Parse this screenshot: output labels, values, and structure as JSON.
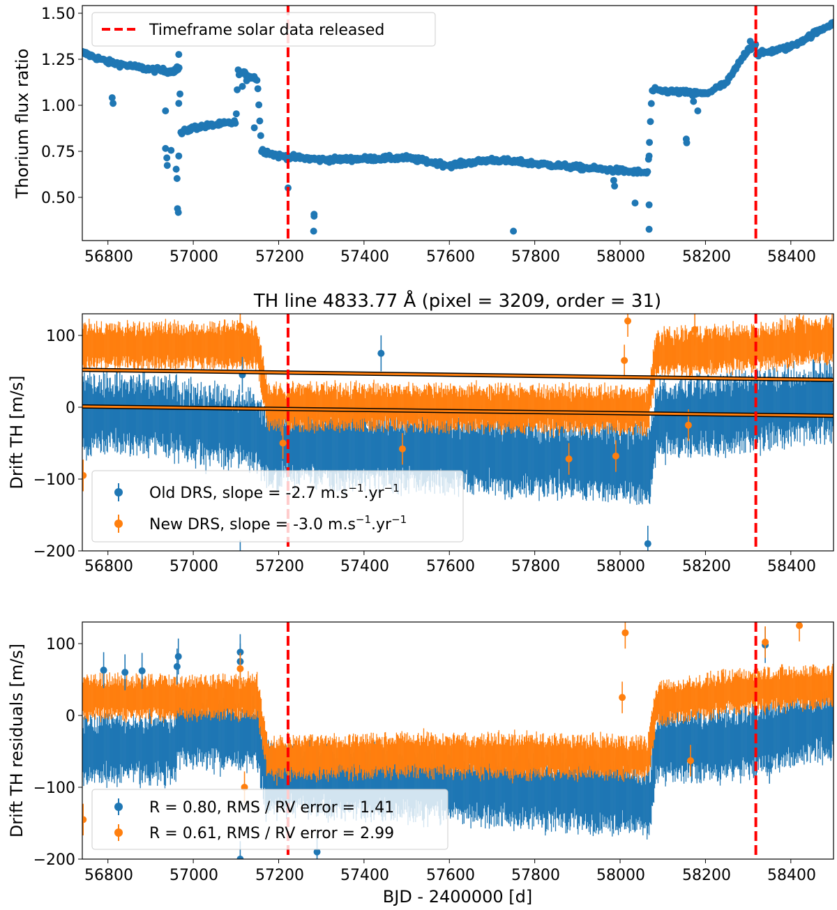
{
  "figure": {
    "xlabel": "BJD - 2400000 [d]",
    "colors": {
      "old": "#1f77b4",
      "new": "#ff7f0e",
      "marker": "#ff0000",
      "fit": "#000000"
    }
  },
  "chart_data": [
    {
      "id": "flux",
      "type": "scatter",
      "title": "",
      "xlabel": "",
      "ylabel": "Thorium flux ratio",
      "xlim": [
        56740,
        58500
      ],
      "ylim": [
        0.28,
        1.53
      ],
      "xticks": [
        56800,
        57000,
        57200,
        57400,
        57600,
        57800,
        58000,
        58200,
        58400
      ],
      "xtick_labels": [
        "56800",
        "57000",
        "57200",
        "57400",
        "57600",
        "57800",
        "58000",
        "58200",
        "58400"
      ],
      "yticks": [
        0.5,
        0.75,
        1.0,
        1.25,
        1.5
      ],
      "ytick_labels": [
        "0.50",
        "0.75",
        "1.00",
        "1.25",
        "1.50"
      ],
      "legend": [
        "Timeframe solar data released"
      ],
      "vlines": [
        57222,
        58318
      ],
      "trend": [
        [
          56740,
          1.28
        ],
        [
          56800,
          1.23
        ],
        [
          56900,
          1.19
        ],
        [
          56950,
          1.18
        ],
        [
          56968,
          1.2
        ],
        [
          56970,
          0.85
        ],
        [
          57000,
          0.88
        ],
        [
          57100,
          0.91
        ],
        [
          57105,
          1.18
        ],
        [
          57150,
          1.14
        ],
        [
          57160,
          0.76
        ],
        [
          57200,
          0.73
        ],
        [
          57300,
          0.71
        ],
        [
          57500,
          0.72
        ],
        [
          57600,
          0.68
        ],
        [
          57700,
          0.71
        ],
        [
          57800,
          0.69
        ],
        [
          57900,
          0.67
        ],
        [
          58065,
          0.64
        ],
        [
          58075,
          1.08
        ],
        [
          58200,
          1.06
        ],
        [
          58250,
          1.12
        ],
        [
          58300,
          1.3
        ],
        [
          58318,
          1.32
        ],
        [
          58320,
          1.27
        ],
        [
          58400,
          1.31
        ],
        [
          58500,
          1.44
        ]
      ],
      "outliers": [
        [
          56810,
          1.04
        ],
        [
          56812,
          1.01
        ],
        [
          56935,
          0.97
        ],
        [
          56935,
          0.77
        ],
        [
          56938,
          0.72
        ],
        [
          56939,
          0.68
        ],
        [
          56948,
          0.76
        ],
        [
          56960,
          0.66
        ],
        [
          56962,
          0.61
        ],
        [
          56963,
          0.45
        ],
        [
          56965,
          0.43
        ],
        [
          56966,
          0.73
        ],
        [
          56966,
          1.01
        ],
        [
          56966,
          1.27
        ],
        [
          57115,
          1.1
        ],
        [
          57125,
          1.13
        ],
        [
          57143,
          0.88
        ],
        [
          57222,
          0.56
        ],
        [
          57283,
          0.42
        ],
        [
          57283,
          0.41
        ],
        [
          57282,
          0.33
        ],
        [
          57750,
          0.33
        ],
        [
          57985,
          0.6
        ],
        [
          57987,
          0.57
        ],
        [
          58035,
          0.48
        ],
        [
          58068,
          0.47
        ],
        [
          58068,
          0.34
        ],
        [
          58068,
          0.73
        ],
        [
          58155,
          0.82
        ],
        [
          58156,
          0.8
        ],
        [
          58170,
          1.05
        ],
        [
          58172,
          1.02
        ],
        [
          58182,
          0.97
        ],
        [
          58305,
          1.34
        ]
      ]
    },
    {
      "id": "drift",
      "type": "scatter",
      "title": "TH line 4833.77 Å (pixel = 3209, order = 31)",
      "xlabel": "",
      "ylabel": "Drift TH [m/s]",
      "xlim": [
        56740,
        58500
      ],
      "ylim": [
        -200,
        130
      ],
      "xticks": [
        56800,
        57000,
        57200,
        57400,
        57600,
        57800,
        58000,
        58200,
        58400
      ],
      "xtick_labels": [
        "56800",
        "57000",
        "57200",
        "57400",
        "57600",
        "57800",
        "58000",
        "58200",
        "58400"
      ],
      "yticks": [
        -200,
        -100,
        0,
        100
      ],
      "ytick_labels": [
        "−200",
        "−100",
        "0",
        "100"
      ],
      "vlines": [
        57222,
        58318
      ],
      "legend": [
        "Old DRS, slope = -2.7 m.s",
        "New DRS, slope = -3.0 m.s"
      ],
      "slopes": [
        -2.7,
        -3.0
      ],
      "series": [
        {
          "name": "Old DRS",
          "offsets": [
            [
              56740,
              -10
            ],
            [
              56960,
              -10
            ],
            [
              56962,
              -20
            ],
            [
              57140,
              -30
            ],
            [
              57170,
              -55
            ],
            [
              57500,
              -60
            ],
            [
              58000,
              -75
            ],
            [
              58070,
              -80
            ],
            [
              58085,
              -20
            ],
            [
              58300,
              -5
            ],
            [
              58500,
              10
            ]
          ],
          "spread": 50,
          "fit": [
            [
              56740,
              1
            ],
            [
              58500,
              -12
            ]
          ]
        },
        {
          "name": "New DRS",
          "offsets": [
            [
              56740,
              85
            ],
            [
              57150,
              85
            ],
            [
              57175,
              0
            ],
            [
              57500,
              0
            ],
            [
              58065,
              -5
            ],
            [
              58085,
              75
            ],
            [
              58300,
              82
            ],
            [
              58500,
              95
            ]
          ],
          "spread": 30,
          "fit": [
            [
              56740,
              52
            ],
            [
              58500,
              38
            ]
          ]
        }
      ],
      "outliers_old": [
        [
          57110,
          -210
        ],
        [
          57115,
          45
        ],
        [
          58065,
          -190
        ],
        [
          57440,
          75
        ]
      ],
      "outliers_new": [
        [
          56742,
          -95
        ],
        [
          57110,
          113
        ],
        [
          57110,
          103
        ],
        [
          57210,
          -50
        ],
        [
          57490,
          -58
        ],
        [
          57880,
          -72
        ],
        [
          57990,
          -68
        ],
        [
          58010,
          65
        ],
        [
          58018,
          120
        ],
        [
          58160,
          -25
        ],
        [
          58175,
          108
        ],
        [
          58420,
          118
        ]
      ]
    },
    {
      "id": "residuals",
      "type": "scatter",
      "title": "",
      "xlabel": "BJD - 2400000 [d]",
      "ylabel": "Drift TH residuals [m/s]",
      "xlim": [
        56740,
        58500
      ],
      "ylim": [
        -200,
        130
      ],
      "xticks": [
        56800,
        57000,
        57200,
        57400,
        57600,
        57800,
        58000,
        58200,
        58400
      ],
      "xtick_labels": [
        "56800",
        "57000",
        "57200",
        "57400",
        "57600",
        "57800",
        "58000",
        "58200",
        "58400"
      ],
      "yticks": [
        -200,
        -100,
        0,
        100
      ],
      "ytick_labels": [
        "−200",
        "−100",
        "0",
        "100"
      ],
      "vlines": [
        57222,
        58318
      ],
      "legend": [
        "R = 0.80, RMS / RV error = 1.41",
        "R = 0.61, RMS / RV error = 2.99"
      ],
      "series": [
        {
          "name": "Old DRS",
          "offsets": [
            [
              56740,
              -45
            ],
            [
              56960,
              -45
            ],
            [
              56962,
              -20
            ],
            [
              57150,
              -30
            ],
            [
              57170,
              -90
            ],
            [
              57500,
              -95
            ],
            [
              58000,
              -115
            ],
            [
              58070,
              -120
            ],
            [
              58085,
              -45
            ],
            [
              58300,
              -35
            ],
            [
              58500,
              -10
            ]
          ],
          "spread": 45,
          "fit": null
        },
        {
          "name": "New DRS",
          "offsets": [
            [
              56740,
              25
            ],
            [
              57150,
              25
            ],
            [
              57175,
              -60
            ],
            [
              57500,
              -55
            ],
            [
              58065,
              -60
            ],
            [
              58085,
              15
            ],
            [
              58300,
              35
            ],
            [
              58500,
              40
            ]
          ],
          "spread": 28,
          "fit": null
        }
      ],
      "outliers_old": [
        [
          56790,
          63
        ],
        [
          56840,
          60
        ],
        [
          56880,
          62
        ],
        [
          56965,
          82
        ],
        [
          56962,
          68
        ],
        [
          57110,
          88
        ],
        [
          57110,
          75
        ],
        [
          57110,
          -200
        ],
        [
          57290,
          -190
        ],
        [
          58180,
          -65
        ],
        [
          58350,
          -70
        ],
        [
          58340,
          98
        ]
      ],
      "outliers_new": [
        [
          56742,
          -145
        ],
        [
          57110,
          65
        ],
        [
          57120,
          -100
        ],
        [
          58005,
          25
        ],
        [
          58012,
          115
        ],
        [
          58165,
          -63
        ],
        [
          58340,
          102
        ],
        [
          58420,
          125
        ]
      ]
    }
  ]
}
